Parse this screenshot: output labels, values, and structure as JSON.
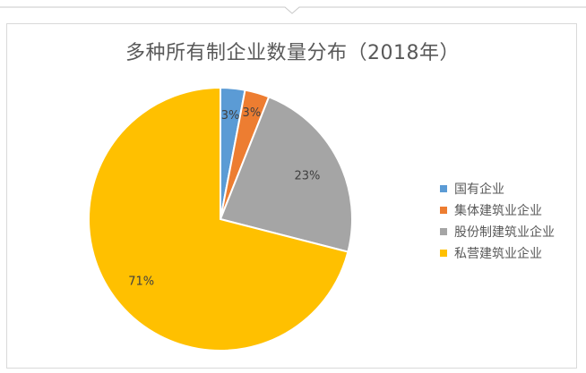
{
  "chart_data": {
    "type": "pie",
    "title": "多种所有制企业数量分布（2018年）",
    "categories": [
      "国有企业",
      "集体建筑业企业",
      "股份制建筑业企业",
      "私营建筑业企业"
    ],
    "values": [
      3,
      3,
      23,
      71
    ],
    "labels": [
      "3%",
      "3%",
      "23%",
      "71%"
    ],
    "colors": [
      "#5b9bd5",
      "#ed7d31",
      "#a5a5a5",
      "#ffc000"
    ],
    "legend": "right"
  }
}
